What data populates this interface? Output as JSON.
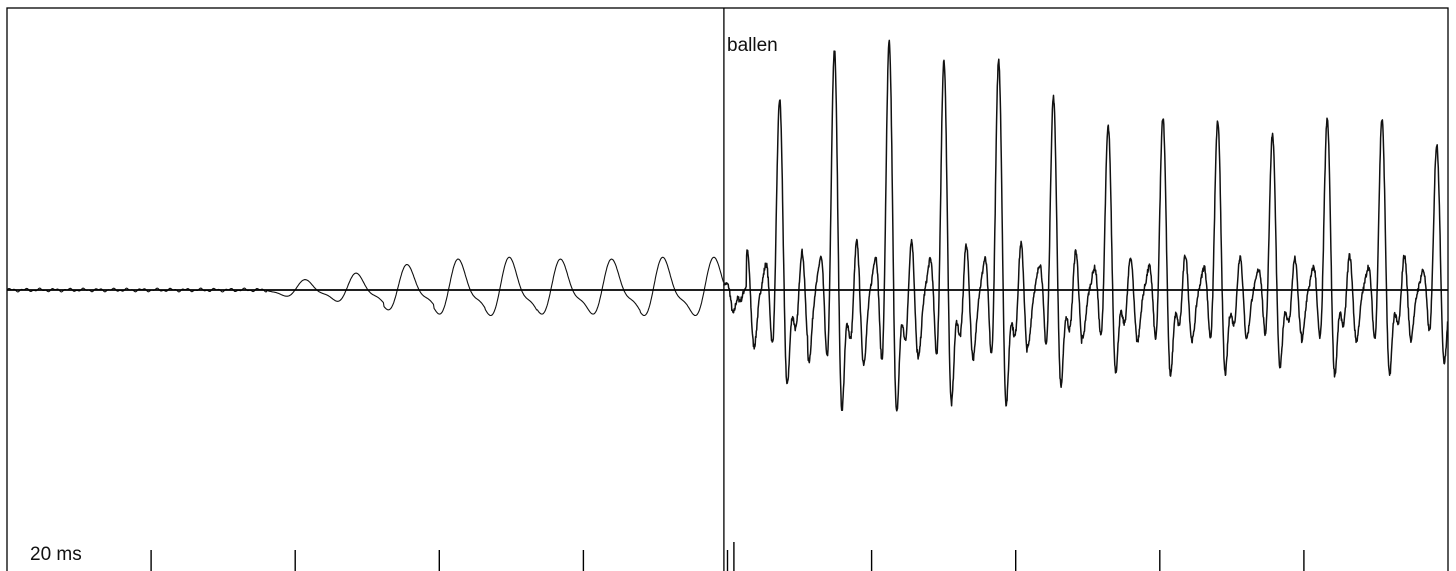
{
  "chart_data": {
    "type": "line",
    "title": "",
    "annotations": {
      "segment_label": "ballen",
      "scale_label": "20 ms"
    },
    "time_unit": "ms",
    "tick_interval_ms": 20,
    "x_range_ms": [
      0,
      200
    ],
    "segment_boundary_ms": 99.5,
    "grid": false,
    "series": [
      {
        "description_free": true,
        "voicing_onset_ms": 36,
        "pre_boundary": {
          "period_ms": 7.1,
          "peak_times_ms": [
            55.8,
            62.8,
            69.9,
            77.1,
            84.3,
            91.4
          ],
          "peak_amplitude_rel": [
            0.14,
            0.17,
            0.18,
            0.17,
            0.17,
            0.18
          ]
        },
        "post_boundary": {
          "period_ms": 7.6,
          "peak_times_ms": [
            107.2,
            114.9,
            122.5,
            130.1,
            137.8,
            145.4,
            153.0,
            160.6,
            168.3,
            175.9,
            183.5,
            191.1,
            198.8
          ],
          "peak_amplitude_rel": [
            0.77,
            0.97,
            1.0,
            0.92,
            0.93,
            0.78,
            0.66,
            0.7,
            0.68,
            0.63,
            0.69,
            0.69,
            0.59
          ]
        }
      }
    ]
  }
}
